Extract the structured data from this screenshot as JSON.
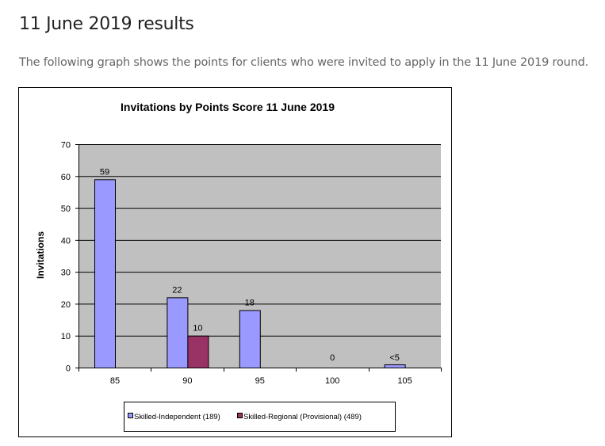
{
  "heading": "11 June 2019 results",
  "intro": "The following graph shows the points for clients who were invited to apply in the 11 June 2019 round.",
  "chart_data": {
    "type": "bar",
    "title": "Invitations by Points Score 11 June 2019",
    "xlabel": "",
    "ylabel": "Invitations",
    "ylim": [
      0,
      70
    ],
    "yticks": [
      0,
      10,
      20,
      30,
      40,
      50,
      60,
      70
    ],
    "grid": true,
    "categories": [
      "85",
      "90",
      "95",
      "100",
      "105"
    ],
    "series": [
      {
        "name": "Skilled-Independent (189)",
        "color": "#9999ff",
        "values": [
          59,
          22,
          18,
          0,
          1
        ],
        "labels": [
          "59",
          "22",
          "18",
          "0",
          "<5"
        ]
      },
      {
        "name": "Skilled-Regional (Provisional) (489)",
        "color": "#993366",
        "values": [
          0,
          10,
          0,
          0,
          0
        ],
        "labels": [
          "",
          "10",
          "",
          "",
          ""
        ]
      }
    ],
    "legend": "bottom"
  }
}
